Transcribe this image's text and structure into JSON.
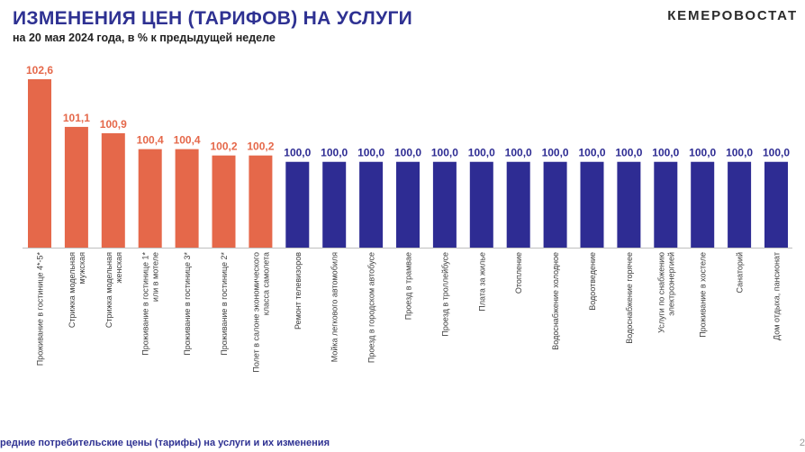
{
  "header": {
    "title": "ИЗМЕНЕНИЯ ЦЕН (ТАРИФОВ) НА УСЛУГИ",
    "subtitle": "на 20 мая 2024 года, в % к предыдущей неделе",
    "brand": "КЕМЕРОВОСТАТ"
  },
  "footer": {
    "text": "редние потребительские цены (тарифы) на услуги и их изменения",
    "page": "2"
  },
  "colors": {
    "increase": "#e5684a",
    "nochange": "#2e2c93",
    "title": "#2e3192"
  },
  "chart_data": {
    "type": "bar",
    "title": "ИЗМЕНЕНИЯ ЦЕН (ТАРИФОВ) НА УСЛУГИ",
    "subtitle": "на 20 мая 2024 года, в % к предыдущей неделе",
    "categories": [
      [
        "Проживание в гостинице 4*-5*"
      ],
      [
        "Стрижка модельная",
        "мужская"
      ],
      [
        "Стрижка модельная",
        "женская"
      ],
      [
        "Проживание в гостинице 1*",
        "или в мотеле"
      ],
      [
        "Проживание в гостинице 3*"
      ],
      [
        "Проживание в гостинице 2*"
      ],
      [
        "Полет в салоне экономического",
        "класса самолета"
      ],
      [
        "Ремонт телевизоров"
      ],
      [
        "Мойка легкового автомобиля"
      ],
      [
        "Проезд в городском автобусе"
      ],
      [
        "Проезд в трамвае"
      ],
      [
        "Проезд в троллейбусе"
      ],
      [
        "Плата за жилье"
      ],
      [
        "Отопление"
      ],
      [
        "Водоснабжение холодное"
      ],
      [
        "Водоотведение"
      ],
      [
        "Водоснабжение горячее"
      ],
      [
        "Услуги по снабжению",
        "электроэнергией"
      ],
      [
        "Проживание в хостеле"
      ],
      [
        "Санаторий"
      ],
      [
        "Дом отдыха, пансионат"
      ]
    ],
    "values": [
      102.6,
      101.1,
      100.9,
      100.4,
      100.4,
      100.2,
      100.2,
      100.0,
      100.0,
      100.0,
      100.0,
      100.0,
      100.0,
      100.0,
      100.0,
      100.0,
      100.0,
      100.0,
      100.0,
      100.0,
      100.0
    ],
    "value_labels": [
      "102,6",
      "101,1",
      "100,9",
      "100,4",
      "100,4",
      "100,2",
      "100,2",
      "100,0",
      "100,0",
      "100,0",
      "100,0",
      "100,0",
      "100,0",
      "100,0",
      "100,0",
      "100,0",
      "100,0",
      "100,0",
      "100,0",
      "100,0",
      "100,0"
    ],
    "ylim": [
      97.3,
      102.6
    ],
    "grid": false,
    "legend": "none"
  }
}
